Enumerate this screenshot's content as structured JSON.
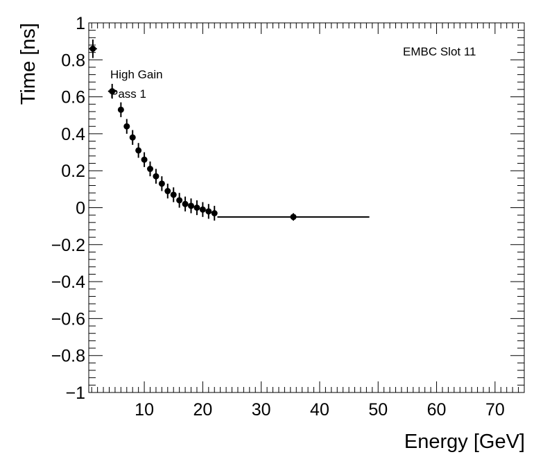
{
  "chart_data": {
    "type": "scatter",
    "xlabel": "Energy [GeV]",
    "ylabel": "Time [ns]",
    "xlim": [
      0.5,
      75
    ],
    "ylim": [
      -1,
      1
    ],
    "x_ticks": [
      10,
      20,
      30,
      40,
      50,
      60,
      70
    ],
    "y_ticks": [
      -1,
      -0.8,
      -0.6,
      -0.4,
      -0.2,
      0,
      0.2,
      0.4,
      0.6,
      0.8,
      1
    ],
    "x_tick_labels": [
      "10",
      "20",
      "30",
      "40",
      "50",
      "60",
      "70"
    ],
    "y_tick_labels": [
      "−1",
      "−0.8",
      "−0.6",
      "−0.4",
      "−0.2",
      "0",
      "0.2",
      "0.4",
      "0.6",
      "0.8",
      "1"
    ],
    "annotations": {
      "slot": "EMBC Slot 11",
      "gain": "High Gain",
      "pass": "Pass 1"
    },
    "grid": false,
    "marker_color": "#000000",
    "series": [
      {
        "points": [
          {
            "x": 1.2,
            "y": 0.86,
            "xerr": 0.7,
            "yerr": 0.05
          },
          {
            "x": 4.5,
            "y": 0.63,
            "xerr": 0.7,
            "yerr": 0.04
          },
          {
            "x": 6.0,
            "y": 0.53,
            "xerr": 0,
            "yerr": 0.04
          },
          {
            "x": 7.0,
            "y": 0.44,
            "xerr": 0,
            "yerr": 0.04
          },
          {
            "x": 8.0,
            "y": 0.38,
            "xerr": 0,
            "yerr": 0.04
          },
          {
            "x": 9.0,
            "y": 0.31,
            "xerr": 0,
            "yerr": 0.04
          },
          {
            "x": 10.0,
            "y": 0.26,
            "xerr": 0,
            "yerr": 0.04
          },
          {
            "x": 11.0,
            "y": 0.21,
            "xerr": 0,
            "yerr": 0.04
          },
          {
            "x": 12.0,
            "y": 0.17,
            "xerr": 0,
            "yerr": 0.04
          },
          {
            "x": 13.0,
            "y": 0.13,
            "xerr": 0,
            "yerr": 0.04
          },
          {
            "x": 14.0,
            "y": 0.09,
            "xerr": 0,
            "yerr": 0.04
          },
          {
            "x": 15.0,
            "y": 0.07,
            "xerr": 0,
            "yerr": 0.04
          },
          {
            "x": 16.0,
            "y": 0.04,
            "xerr": 0,
            "yerr": 0.04
          },
          {
            "x": 17.0,
            "y": 0.02,
            "xerr": 0,
            "yerr": 0.04
          },
          {
            "x": 18.0,
            "y": 0.01,
            "xerr": 0,
            "yerr": 0.04
          },
          {
            "x": 19.0,
            "y": 0.0,
            "xerr": 0,
            "yerr": 0.04
          },
          {
            "x": 20.0,
            "y": -0.01,
            "xerr": 0,
            "yerr": 0.04
          },
          {
            "x": 21.0,
            "y": -0.02,
            "xerr": 0,
            "yerr": 0.04
          },
          {
            "x": 22.0,
            "y": -0.03,
            "xerr": 0,
            "yerr": 0.04
          },
          {
            "x": 35.5,
            "y": -0.05,
            "xerr": 13,
            "yerr": 0.02
          }
        ]
      }
    ]
  }
}
